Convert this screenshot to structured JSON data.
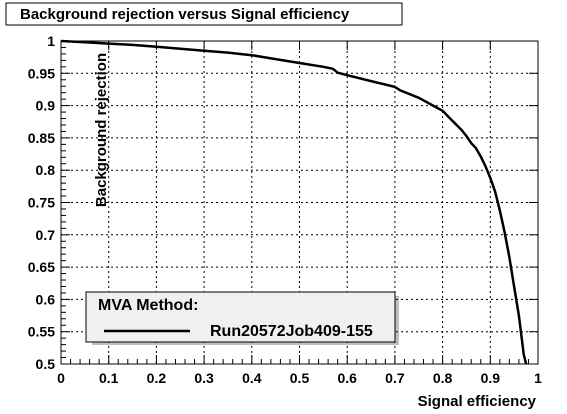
{
  "colors": {
    "background": "#ffffff",
    "frame": "#000000",
    "grid": "#000000",
    "curve": "#000000",
    "legend_fill": "#f0f0f0",
    "title_fill": "#ffffff"
  },
  "chart_data": {
    "type": "line",
    "title": "Background rejection versus Signal efficiency",
    "xlabel": "Signal efficiency",
    "ylabel": "Background rejection",
    "xlim": [
      0,
      1
    ],
    "ylim": [
      0.5,
      1
    ],
    "x_ticks": [
      0,
      0.1,
      0.2,
      0.3,
      0.4,
      0.5,
      0.6,
      0.7,
      0.8,
      0.9,
      1
    ],
    "x_tick_labels": [
      "0",
      "0.1",
      "0.2",
      "0.3",
      "0.4",
      "0.5",
      "0.6",
      "0.7",
      "0.8",
      "0.9",
      "1"
    ],
    "y_ticks": [
      0.5,
      0.55,
      0.6,
      0.65,
      0.7,
      0.75,
      0.8,
      0.85,
      0.9,
      0.95,
      1
    ],
    "y_tick_labels": [
      "0.5",
      "0.55",
      "0.6",
      "0.65",
      "0.7",
      "0.75",
      "0.8",
      "0.85",
      "0.9",
      "0.95",
      "1"
    ],
    "grid": true,
    "legend": {
      "header": "MVA Method:",
      "placement": "bottom-left",
      "entries": [
        "Run20572Job409-155"
      ]
    },
    "series": [
      {
        "name": "Run20572Job409-155",
        "x": [
          0.0,
          0.05,
          0.1,
          0.15,
          0.2,
          0.25,
          0.3,
          0.35,
          0.4,
          0.45,
          0.5,
          0.55,
          0.57,
          0.58,
          0.6,
          0.65,
          0.7,
          0.71,
          0.75,
          0.78,
          0.8,
          0.82,
          0.84,
          0.85,
          0.86,
          0.87,
          0.88,
          0.89,
          0.9,
          0.91,
          0.92,
          0.93,
          0.94,
          0.95,
          0.96,
          0.965,
          0.97,
          0.975
        ],
        "y": [
          1.0,
          0.998,
          0.996,
          0.994,
          0.991,
          0.988,
          0.985,
          0.982,
          0.978,
          0.972,
          0.966,
          0.96,
          0.957,
          0.951,
          0.947,
          0.938,
          0.929,
          0.924,
          0.912,
          0.9,
          0.892,
          0.877,
          0.862,
          0.853,
          0.842,
          0.834,
          0.821,
          0.806,
          0.788,
          0.767,
          0.738,
          0.704,
          0.665,
          0.62,
          0.575,
          0.545,
          0.515,
          0.5
        ]
      }
    ]
  }
}
